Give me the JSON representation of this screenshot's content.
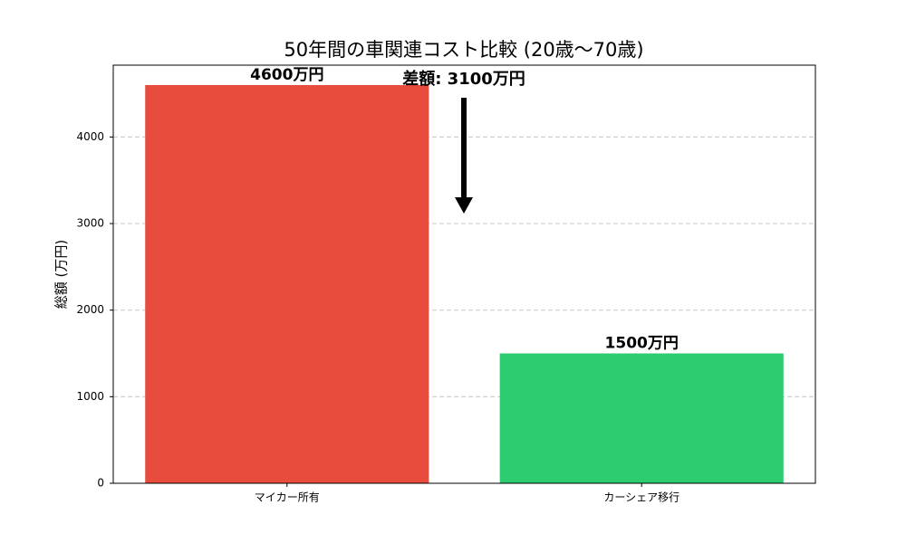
{
  "chart_data": {
    "type": "bar",
    "title": "50年間の車関連コスト比較 (20歳〜70歳)",
    "y_label": "総額 (万円)",
    "categories": [
      "マイカー所有",
      "カーシェア移行"
    ],
    "values": [
      4600,
      1500
    ],
    "value_labels": [
      "4600万円",
      "1500万円"
    ],
    "colors": [
      "#e74c3c",
      "#2ecc71"
    ],
    "annotation": "差額: 3100万円",
    "ylim": [
      0,
      4830
    ],
    "yticks": [
      0,
      1000,
      2000,
      3000,
      4000
    ],
    "grid": true
  }
}
